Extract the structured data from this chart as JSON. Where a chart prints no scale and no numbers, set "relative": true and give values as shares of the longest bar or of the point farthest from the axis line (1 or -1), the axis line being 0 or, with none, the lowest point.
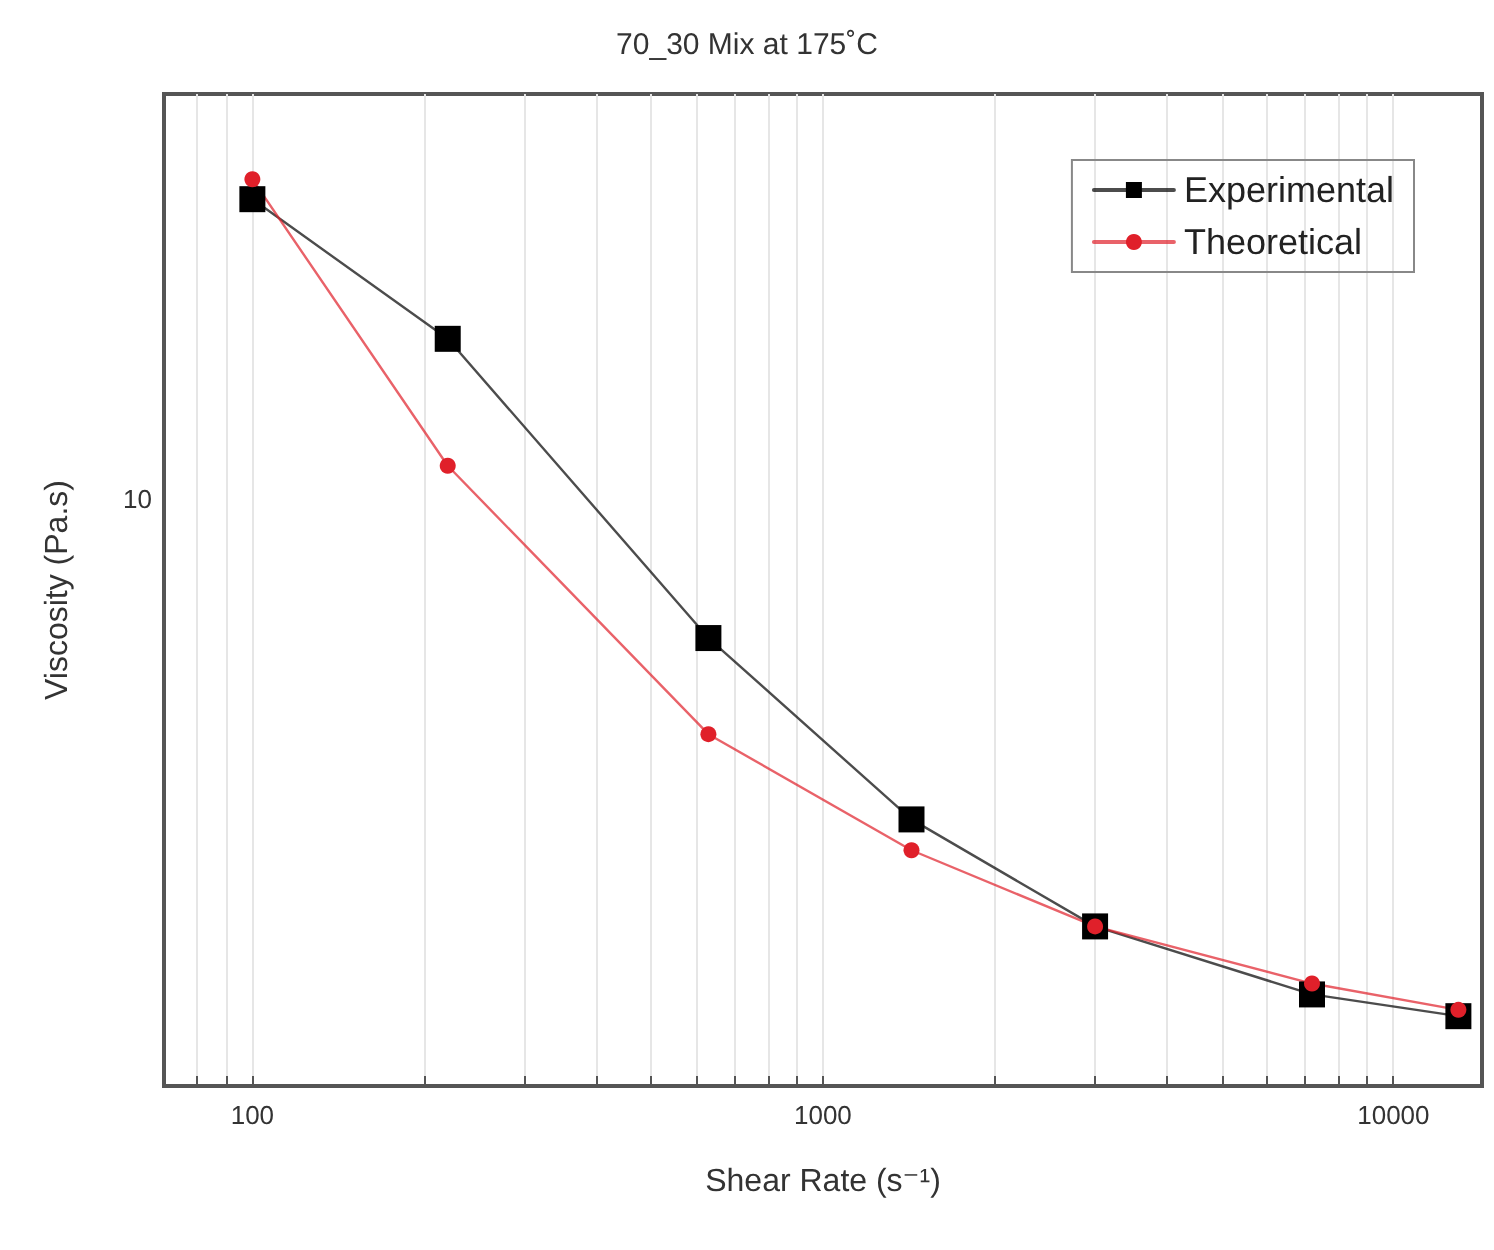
{
  "chart_data": {
    "type": "line",
    "title": "70_30 Mix at 175˚C",
    "xlabel": "Shear Rate (s⁻¹)",
    "ylabel": "Viscosity (Pa.s)",
    "x": [
      100,
      220,
      630,
      1430,
      3000,
      7200,
      13000
    ],
    "series": [
      {
        "name": "Experimental",
        "color": "#000000",
        "marker": "square",
        "values": [
          0.978,
          0.824,
          0.494,
          0.294,
          0.176,
          0.101,
          0.077
        ]
      },
      {
        "name": "Theoretical",
        "color": "#e0202a",
        "marker": "circle",
        "values": [
          1,
          0.684,
          0.388,
          0.26,
          0.176,
          0.113,
          0.084
        ]
      }
    ],
    "relative": true,
    "annotations": [
      "10"
    ],
    "log": "x",
    "xlim": [
      70,
      14300
    ],
    "xticks": [
      {
        "value": 80,
        "label": null
      },
      {
        "value": 90,
        "label": null
      },
      100,
      {
        "value": 200,
        "label": null
      },
      {
        "value": 300,
        "label": null
      },
      {
        "value": 400,
        "label": null
      },
      {
        "value": 500,
        "label": null
      },
      {
        "value": 600,
        "label": null
      },
      {
        "value": 700,
        "label": null
      },
      {
        "value": 800,
        "label": null
      },
      {
        "value": 900,
        "label": null
      },
      1000,
      {
        "value": 2000,
        "label": null
      },
      {
        "value": 3000,
        "label": null
      },
      {
        "value": 4000,
        "label": null
      },
      {
        "value": 5000,
        "label": null
      },
      {
        "value": 6000,
        "label": null
      },
      {
        "value": 7000,
        "label": null
      },
      {
        "value": 8000,
        "label": null
      },
      {
        "value": 9000,
        "label": null
      },
      10000
    ],
    "grid": "x",
    "legend": "top right",
    "line_style": "solid"
  }
}
